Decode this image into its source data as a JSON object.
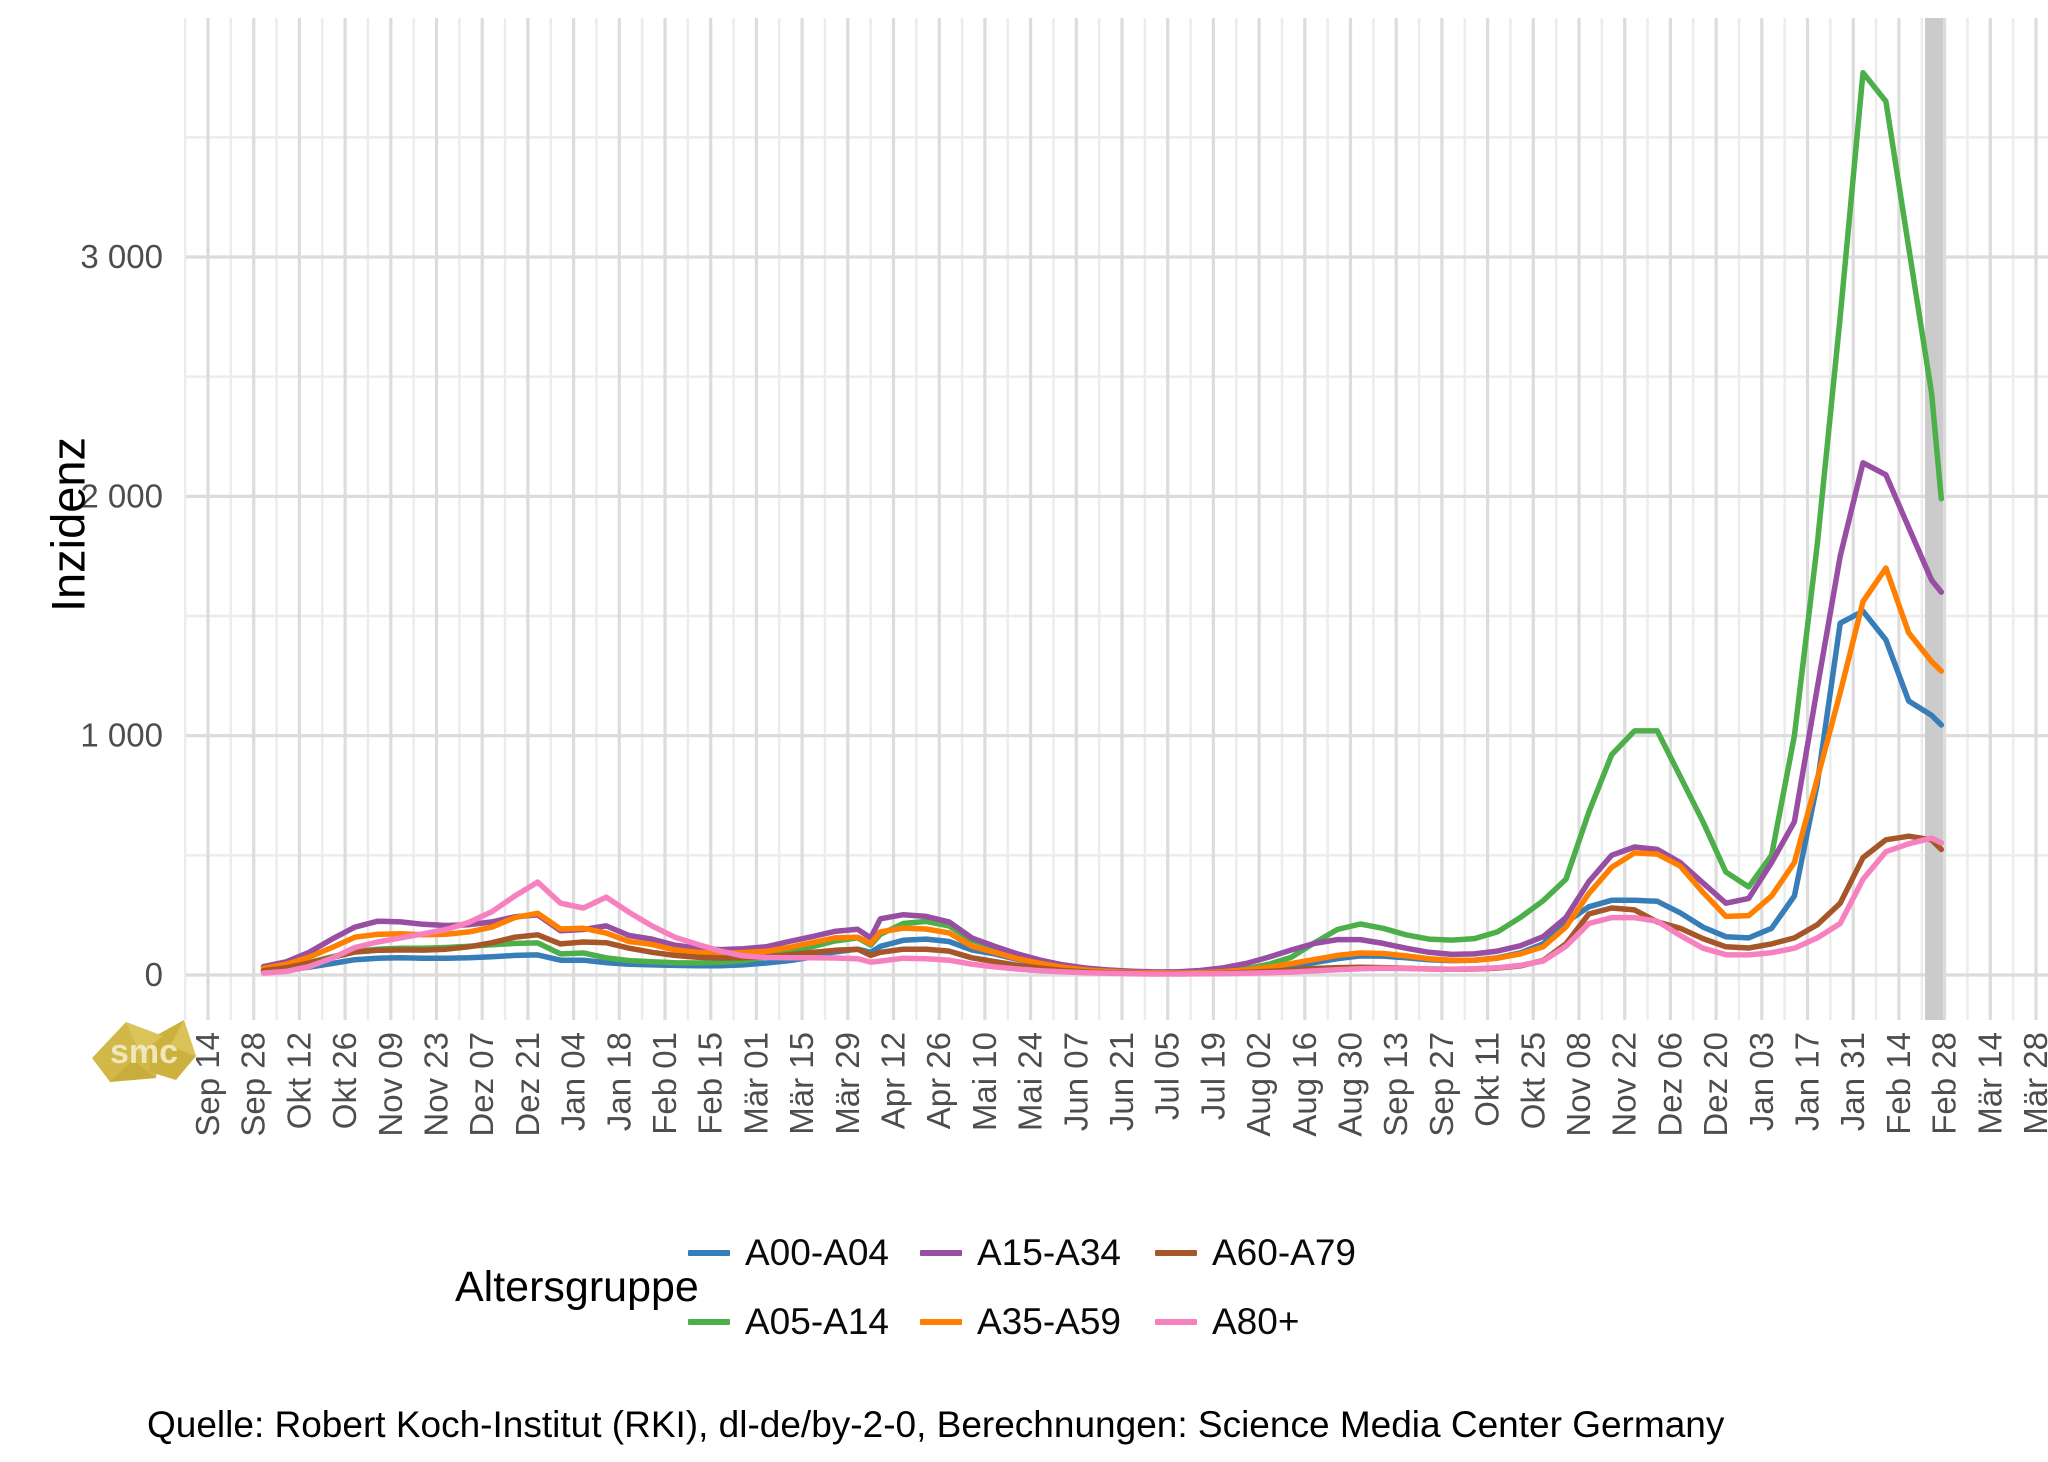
{
  "page": {
    "ylabel": "Inzidenz",
    "legend_title": "Altersgruppe",
    "source": "Quelle: Robert Koch-Institut (RKI), dl-de/by-2-0, Berechnungen: Science Media Center Germany",
    "watermark": "smc",
    "accent_gold": "#d2b848",
    "grid_minor_color": "#ececec",
    "grid_major_color": "#dcdcdc",
    "band_color": "#cbcbcb",
    "axis_text_color": "#4d4d4d"
  },
  "chart_data": {
    "type": "line",
    "title": "",
    "xlabel": "",
    "ylabel": "Inzidenz",
    "legend_title": "Altersgruppe",
    "legend_position": "bottom",
    "grid": "on",
    "x_unit": "days since first x tick (Sep 14 2020), major ticks every 14 days, minor gridlines weekly",
    "ylim": [
      -190,
      4000
    ],
    "y_ticks": [
      {
        "value": 0,
        "label": "0"
      },
      {
        "value": 1000,
        "label": "1 000"
      },
      {
        "value": 2000,
        "label": "2 000"
      },
      {
        "value": 3000,
        "label": "3 000"
      }
    ],
    "y_minor": [
      500,
      1500,
      2500,
      3500
    ],
    "x_tick_labels": [
      "Sep 14",
      "Sep 28",
      "Okt 12",
      "Okt 26",
      "Nov 09",
      "Nov 23",
      "Dez 07",
      "Dez 21",
      "Jan 04",
      "Jan 18",
      "Feb 01",
      "Feb 15",
      "Mär 01",
      "Mär 15",
      "Mär 29",
      "Apr 12",
      "Apr 26",
      "Mai 10",
      "Mai 24",
      "Jun 07",
      "Jun 21",
      "Jul 05",
      "Jul 19",
      "Aug 02",
      "Aug 16",
      "Aug 30",
      "Sep 13",
      "Sep 27",
      "Okt 11",
      "Okt 25",
      "Nov 08",
      "Nov 22",
      "Dez 06",
      "Dez 20",
      "Jan 03",
      "Jan 17",
      "Jan 31",
      "Feb 14",
      "Feb 28",
      "Mär 14",
      "Mär 28"
    ],
    "x_tick_step_days": 14,
    "highlight_band": {
      "from_day": 526,
      "to_day": 531.5,
      "note": "most recent days, incomplete reporting"
    },
    "x_days": [
      17,
      24,
      31,
      38,
      45,
      52,
      59,
      66,
      73,
      80,
      87,
      94,
      101,
      108,
      115,
      122,
      129,
      136,
      143,
      150,
      157,
      164,
      171,
      178,
      185,
      192,
      199,
      203,
      206,
      213,
      220,
      227,
      234,
      241,
      248,
      255,
      262,
      269,
      276,
      283,
      290,
      297,
      304,
      311,
      318,
      325,
      332,
      339,
      346,
      353,
      360,
      367,
      374,
      381,
      388,
      395,
      402,
      409,
      416,
      423,
      430,
      437,
      444,
      451,
      458,
      465,
      472,
      479,
      486,
      493,
      500,
      507,
      514,
      521,
      528,
      531
    ],
    "series": [
      {
        "name": "A00-A04",
        "color": "#377eb8",
        "values": [
          12,
          20,
          33,
          48,
          64,
          70,
          72,
          70,
          70,
          72,
          76,
          82,
          84,
          62,
          62,
          52,
          45,
          42,
          40,
          39,
          39,
          42,
          50,
          60,
          75,
          96,
          108,
          95,
          120,
          145,
          150,
          140,
          105,
          88,
          65,
          48,
          32,
          22,
          16,
          11,
          8,
          7,
          9,
          12,
          17,
          28,
          38,
          52,
          68,
          80,
          79,
          72,
          64,
          60,
          62,
          72,
          92,
          130,
          220,
          285,
          312,
          312,
          308,
          260,
          200,
          160,
          155,
          195,
          330,
          800,
          1470,
          1520,
          1400,
          1145,
          1085,
          1045
        ]
      },
      {
        "name": "A05-A14",
        "color": "#4daf4a",
        "values": [
          20,
          32,
          52,
          76,
          98,
          108,
          112,
          112,
          115,
          120,
          126,
          132,
          134,
          88,
          92,
          72,
          60,
          55,
          51,
          50,
          53,
          60,
          75,
          95,
          118,
          142,
          155,
          125,
          170,
          215,
          224,
          205,
          145,
          118,
          85,
          62,
          38,
          25,
          17,
          12,
          9,
          8,
          11,
          16,
          25,
          45,
          75,
          135,
          190,
          213,
          195,
          168,
          150,
          146,
          152,
          180,
          240,
          310,
          400,
          680,
          920,
          1020,
          1020,
          830,
          640,
          430,
          368,
          500,
          1000,
          1800,
          2750,
          3770,
          3650,
          3040,
          2430,
          1990
        ]
      },
      {
        "name": "A15-A34",
        "color": "#984ea3",
        "values": [
          35,
          55,
          95,
          150,
          200,
          225,
          222,
          212,
          207,
          210,
          222,
          243,
          251,
          185,
          190,
          205,
          165,
          150,
          125,
          112,
          106,
          110,
          118,
          140,
          160,
          182,
          191,
          155,
          235,
          252,
          245,
          222,
          155,
          120,
          88,
          62,
          42,
          29,
          21,
          16,
          13,
          13,
          19,
          30,
          48,
          75,
          105,
          132,
          148,
          148,
          132,
          112,
          95,
          86,
          88,
          100,
          122,
          160,
          240,
          390,
          500,
          535,
          525,
          470,
          385,
          300,
          320,
          470,
          640,
          1200,
          1750,
          2140,
          2090,
          1870,
          1650,
          1600
        ]
      },
      {
        "name": "A35-A59",
        "color": "#ff7f00",
        "values": [
          28,
          45,
          75,
          115,
          158,
          170,
          172,
          168,
          170,
          180,
          200,
          240,
          258,
          192,
          195,
          175,
          140,
          128,
          105,
          95,
          91,
          94,
          99,
          115,
          135,
          155,
          158,
          132,
          180,
          196,
          192,
          176,
          120,
          95,
          68,
          48,
          32,
          21,
          15,
          11,
          9,
          8,
          10,
          14,
          21,
          32,
          48,
          65,
          82,
          92,
          90,
          80,
          68,
          62,
          62,
          70,
          88,
          118,
          200,
          340,
          450,
          510,
          505,
          455,
          345,
          245,
          248,
          330,
          470,
          820,
          1180,
          1560,
          1700,
          1430,
          1310,
          1270
        ]
      },
      {
        "name": "A60-A79",
        "color": "#a65628",
        "values": [
          18,
          30,
          50,
          73,
          96,
          103,
          105,
          104,
          108,
          118,
          135,
          158,
          168,
          130,
          138,
          135,
          112,
          95,
          82,
          74,
          71,
          72,
          76,
          85,
          94,
          103,
          108,
          82,
          95,
          108,
          108,
          100,
          72,
          56,
          40,
          29,
          19,
          13,
          9,
          7,
          5,
          5,
          6,
          8,
          11,
          15,
          21,
          27,
          31,
          32,
          31,
          28,
          25,
          24,
          25,
          29,
          38,
          60,
          130,
          255,
          280,
          272,
          222,
          195,
          152,
          118,
          113,
          130,
          155,
          210,
          300,
          490,
          565,
          580,
          565,
          525
        ]
      },
      {
        "name": "A80+",
        "color": "#f781bf",
        "values": [
          8,
          15,
          35,
          70,
          115,
          138,
          155,
          172,
          190,
          220,
          265,
          330,
          388,
          300,
          280,
          325,
          262,
          205,
          158,
          128,
          100,
          80,
          73,
          72,
          72,
          71,
          68,
          54,
          58,
          70,
          68,
          62,
          45,
          34,
          25,
          18,
          13,
          9,
          7,
          5,
          4,
          4,
          5,
          6,
          7,
          9,
          12,
          17,
          22,
          26,
          28,
          27,
          25,
          24,
          26,
          30,
          40,
          58,
          120,
          215,
          240,
          240,
          225,
          165,
          112,
          85,
          84,
          93,
          112,
          155,
          215,
          400,
          515,
          548,
          572,
          552
        ]
      }
    ]
  }
}
